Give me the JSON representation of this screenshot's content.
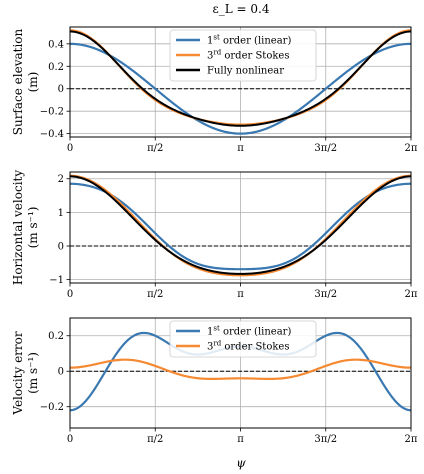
{
  "figure": {
    "title": "ε_L = 0.4",
    "xlabel": "ψ"
  },
  "colors": {
    "linear": "#3a78b1",
    "stokes": "#f58a33",
    "nonlinear": "#000000",
    "grid": "#b0b0b0"
  },
  "chart_data": [
    {
      "type": "line",
      "ylabel": [
        "Surface elevation",
        "(m)"
      ],
      "ylim": [
        -0.43,
        0.55
      ],
      "yticks": [
        0.4,
        0.2,
        0,
        -0.2,
        -0.4
      ],
      "ytick_labels": [
        "0.4",
        "0.2",
        "0",
        "−0.2",
        "−0.4"
      ],
      "xlim": [
        0,
        6.283185
      ],
      "xticks": [
        0,
        1.570796,
        3.141593,
        4.712389,
        6.283185
      ],
      "xtick_labels": [
        "0",
        "π/2",
        "π",
        "3π/2",
        "2π"
      ],
      "grid": true,
      "zero_line": "dashed",
      "legend": {
        "position": "top-center",
        "entries": [
          {
            "series": "linear",
            "parts": [
              "1",
              "st",
              " order (linear)"
            ]
          },
          {
            "series": "stokes",
            "parts": [
              "3",
              "rd",
              " order Stokes"
            ]
          },
          {
            "series": "nonlinear",
            "parts": [
              "Fully nonlinear",
              "",
              ""
            ]
          }
        ]
      },
      "series": [
        {
          "key": "linear",
          "a0": 0,
          "a1": 0.4,
          "a2": 0,
          "a3": 0
        },
        {
          "key": "stokes",
          "a0": 0,
          "a1": 0.4,
          "a2": 0.1,
          "a3": 0.02
        },
        {
          "key": "nonlinear",
          "a0": 0,
          "a1": 0.4,
          "a2": 0.09,
          "a3": 0.02
        }
      ]
    },
    {
      "type": "line",
      "ylabel": [
        "Horizontal velocity",
        "(m s⁻¹)"
      ],
      "ylim": [
        -1.1,
        2.2
      ],
      "yticks": [
        2,
        1,
        0,
        -1
      ],
      "ytick_labels": [
        "2",
        "1",
        "0",
        "−1"
      ],
      "xlim": [
        0,
        6.283185
      ],
      "xticks": [
        0,
        1.570796,
        3.141593,
        4.712389,
        6.283185
      ],
      "xtick_labels": [
        "0",
        "π/2",
        "π",
        "3π/2",
        "2π"
      ],
      "grid": true,
      "zero_line": "dashed",
      "series": [
        {
          "key": "linear",
          "a0": 0.48,
          "a1": 1.35,
          "a2": 0.1,
          "a3": -0.08
        },
        {
          "key": "stokes",
          "a0": 0.41,
          "a1": 1.5,
          "a2": 0.2,
          "a3": -0.02
        },
        {
          "key": "nonlinear",
          "a0": 0.4,
          "a1": 1.45,
          "a2": 0.22,
          "a3": 0
        }
      ]
    },
    {
      "type": "line",
      "ylabel": [
        "Velocity error",
        "(m s⁻¹)"
      ],
      "ylim": [
        -0.32,
        0.3
      ],
      "yticks": [
        0.2,
        0,
        -0.2
      ],
      "ytick_labels": [
        "0.2",
        "0",
        "−0.2"
      ],
      "xlim": [
        0,
        6.283185
      ],
      "xticks": [
        0,
        1.570796,
        3.141593,
        4.712389,
        6.283185
      ],
      "xtick_labels": [
        "0",
        "π/2",
        "π",
        "3π/2",
        "2π"
      ],
      "grid": true,
      "zero_line": "dashed",
      "legend": {
        "position": "top-center",
        "entries": [
          {
            "series": "linear",
            "parts": [
              "1",
              "st",
              " order (linear)"
            ]
          },
          {
            "series": "stokes",
            "parts": [
              "3",
              "rd",
              " order Stokes"
            ]
          }
        ]
      },
      "series": [
        {
          "key": "linear",
          "diff": [
            "linear",
            "nonlinear"
          ]
        },
        {
          "key": "stokes",
          "diff": [
            "stokes",
            "nonlinear"
          ]
        }
      ]
    }
  ]
}
